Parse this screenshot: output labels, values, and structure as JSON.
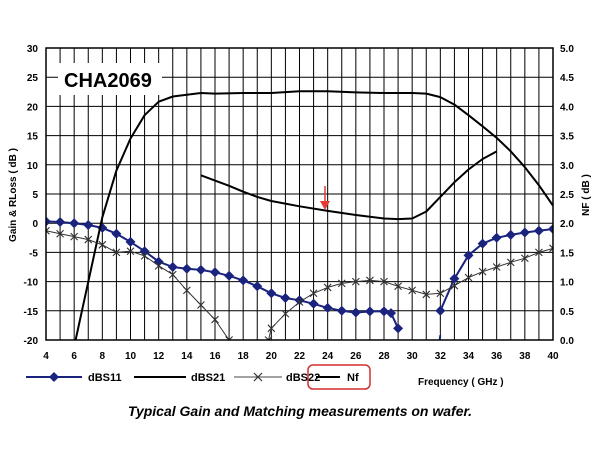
{
  "chart_data": {
    "type": "line",
    "title": "CHA2069",
    "caption": "Typical Gain and Matching  measurements on wafer.",
    "xlabel": "Frequency ( GHz )",
    "ylabel": "Gain & RLoss ( dB )",
    "y2label": "NF ( dB )",
    "xlim": [
      4,
      40
    ],
    "ylim": [
      -20,
      30
    ],
    "y2lim": [
      0,
      5
    ],
    "x_ticks": [
      "4",
      "6",
      "8",
      "10",
      "12",
      "14",
      "16",
      "18",
      "20",
      "22",
      "24",
      "26",
      "28",
      "30",
      "32",
      "34",
      "36",
      "38",
      "40"
    ],
    "y_ticks": [
      "30",
      "25",
      "20",
      "15",
      "10",
      "5",
      "0",
      "-5",
      "-10",
      "-15",
      "-20"
    ],
    "y2_ticks": [
      "5.0",
      "4.5",
      "4.0",
      "3.5",
      "3.0",
      "2.5",
      "2.0",
      "1.5",
      "1.0",
      "0.5",
      "0.0"
    ],
    "grid": true,
    "legend_placement": "bottom",
    "annotation": "red arrow marking Nf minimum near 24 GHz",
    "series": [
      {
        "name": "dBS11",
        "axis": "left",
        "color": "#1a237e",
        "marker": "diamond",
        "segments": [
          [
            [
              4,
              0.3
            ],
            [
              5,
              0.2
            ],
            [
              6,
              0
            ],
            [
              7,
              -0.3
            ],
            [
              8,
              -0.8
            ],
            [
              9,
              -1.8
            ],
            [
              10,
              -3.2
            ],
            [
              11,
              -4.8
            ],
            [
              12,
              -6.6
            ],
            [
              13,
              -7.5
            ],
            [
              14,
              -7.8
            ],
            [
              15,
              -8
            ],
            [
              16,
              -8.4
            ],
            [
              17,
              -9
            ],
            [
              18,
              -9.8
            ],
            [
              19,
              -10.8
            ],
            [
              20,
              -12
            ],
            [
              21,
              -12.8
            ],
            [
              22,
              -13.2
            ],
            [
              23,
              -13.8
            ],
            [
              24,
              -14.5
            ],
            [
              25,
              -15
            ],
            [
              26,
              -15.3
            ],
            [
              27,
              -15.1
            ],
            [
              28,
              -15.1
            ],
            [
              28.5,
              -15.4
            ],
            [
              29,
              -18
            ]
          ],
          [
            [
              32,
              -15
            ],
            [
              33,
              -9.5
            ],
            [
              34,
              -5.5
            ],
            [
              35,
              -3.5
            ],
            [
              36,
              -2.5
            ],
            [
              37,
              -2
            ],
            [
              38,
              -1.6
            ],
            [
              39,
              -1.3
            ],
            [
              40,
              -1
            ]
          ]
        ]
      },
      {
        "name": "dBS21",
        "axis": "left",
        "color": "#000000",
        "marker": "none",
        "segments": [
          [
            [
              6.1,
              -20
            ],
            [
              7,
              -10
            ],
            [
              8,
              1
            ],
            [
              9,
              9
            ],
            [
              10,
              14.5
            ],
            [
              11,
              18.5
            ],
            [
              12,
              20.8
            ],
            [
              13,
              21.7
            ],
            [
              14,
              22
            ],
            [
              15,
              22.3
            ],
            [
              16,
              22.2
            ],
            [
              18,
              22.3
            ],
            [
              20,
              22.3
            ],
            [
              22,
              22.6
            ],
            [
              24,
              22.6
            ],
            [
              26,
              22.4
            ],
            [
              28,
              22.3
            ],
            [
              30,
              22.3
            ],
            [
              31,
              22.2
            ],
            [
              32,
              21.6
            ],
            [
              33,
              20.3
            ],
            [
              34,
              18.5
            ],
            [
              35,
              16.6
            ],
            [
              36,
              14.6
            ],
            [
              37,
              12.3
            ],
            [
              38,
              9.6
            ],
            [
              39,
              6.5
            ],
            [
              40,
              3
            ]
          ]
        ]
      },
      {
        "name": "dBS22",
        "axis": "left",
        "color": "#333333",
        "marker": "x",
        "segments": [
          [
            [
              4,
              -1.3
            ],
            [
              5,
              -1.8
            ],
            [
              6,
              -2.3
            ],
            [
              7,
              -2.8
            ],
            [
              8,
              -3.7
            ],
            [
              9,
              -5
            ],
            [
              10,
              -4.8
            ],
            [
              11,
              -5.6
            ],
            [
              12,
              -7.3
            ],
            [
              13,
              -8.8
            ],
            [
              14,
              -11.5
            ],
            [
              15,
              -14
            ],
            [
              16,
              -16.5
            ],
            [
              17,
              -20
            ]
          ],
          [
            [
              19.8,
              -20
            ],
            [
              20,
              -18
            ],
            [
              21,
              -15.5
            ],
            [
              22,
              -13.5
            ],
            [
              23,
              -12
            ],
            [
              24,
              -11
            ],
            [
              25,
              -10.3
            ],
            [
              26,
              -10
            ],
            [
              27,
              -9.8
            ],
            [
              28,
              -10
            ],
            [
              29,
              -10.8
            ],
            [
              30,
              -11.5
            ],
            [
              31,
              -12.2
            ],
            [
              32,
              -12
            ],
            [
              33,
              -10.7
            ],
            [
              34,
              -9.3
            ],
            [
              35,
              -8.3
            ],
            [
              36,
              -7.5
            ],
            [
              37,
              -6.7
            ],
            [
              38,
              -6
            ],
            [
              39,
              -5
            ],
            [
              40,
              -4.3
            ]
          ]
        ]
      },
      {
        "name": "Nf",
        "axis": "right",
        "color": "#000000",
        "marker": "none",
        "segments": [
          [
            [
              15,
              2.82
            ],
            [
              16,
              2.73
            ],
            [
              17,
              2.64
            ],
            [
              18,
              2.54
            ],
            [
              19,
              2.45
            ],
            [
              20,
              2.38
            ],
            [
              22,
              2.29
            ],
            [
              24,
              2.21
            ],
            [
              26,
              2.14
            ],
            [
              28,
              2.08
            ],
            [
              29,
              2.07
            ],
            [
              30,
              2.08
            ],
            [
              31,
              2.2
            ],
            [
              32,
              2.45
            ],
            [
              33,
              2.7
            ],
            [
              34,
              2.92
            ],
            [
              35,
              3.1
            ],
            [
              36,
              3.23
            ]
          ]
        ]
      },
      {
        "name": "",
        "axis": "left",
        "color": "#1a237e",
        "marker": "none",
        "segments": [
          [
            [
              29.4,
              -20
            ],
            [
              30,
              -28
            ]
          ],
          [
            [
              31.5,
              -28
            ],
            [
              32,
              -19.2
            ]
          ]
        ]
      }
    ],
    "legend": [
      {
        "label": "dBS11",
        "style": "diamond-line"
      },
      {
        "label": "dBS21",
        "style": "line"
      },
      {
        "label": "dBS22",
        "style": "x-line"
      },
      {
        "label": "Nf",
        "style": "line-boxed"
      }
    ]
  }
}
